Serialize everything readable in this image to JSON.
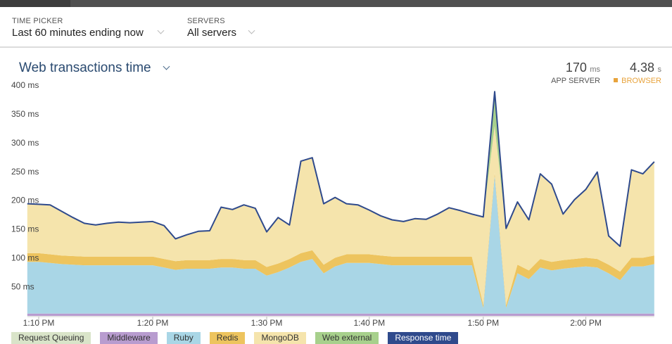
{
  "header": {
    "time_picker": {
      "label": "TIME PICKER",
      "value": "Last 60 minutes ending now"
    },
    "servers": {
      "label": "SERVERS",
      "value": "All servers"
    }
  },
  "summary": {
    "app_server": {
      "value": 170,
      "unit": "ms",
      "label": "APP SERVER"
    },
    "browser": {
      "value": 4.38,
      "unit": "s",
      "label": "BROWSER",
      "color": "#e8a33c"
    }
  },
  "chart_data": {
    "type": "area",
    "stacked": true,
    "title": "Web transactions time",
    "categories": [
      null,
      "1:10 PM",
      null,
      null,
      null,
      null,
      null,
      null,
      null,
      null,
      null,
      "1:20 PM",
      null,
      null,
      null,
      null,
      null,
      null,
      null,
      null,
      null,
      "1:30 PM",
      null,
      null,
      null,
      null,
      null,
      null,
      null,
      null,
      "1:40 PM",
      null,
      null,
      null,
      null,
      null,
      null,
      null,
      null,
      null,
      "1:50 PM",
      null,
      null,
      null,
      null,
      null,
      null,
      null,
      null,
      "2:00 PM",
      null,
      null,
      null,
      null,
      null,
      null
    ],
    "ylim": [
      0,
      400
    ],
    "yticks": [
      {
        "value": 50,
        "label": "50 ms"
      },
      {
        "value": 100,
        "label": "100 ms"
      },
      {
        "value": 150,
        "label": "150 ms"
      },
      {
        "value": 200,
        "label": "200 ms"
      },
      {
        "value": 250,
        "label": "250 ms"
      },
      {
        "value": 300,
        "label": "300 ms"
      },
      {
        "value": 350,
        "label": "350 ms"
      },
      {
        "value": 400,
        "label": "400 ms"
      }
    ],
    "grid": false,
    "series": [
      {
        "name": "Request Queuing",
        "color": "#d9e4c9",
        "values": [
          0,
          0,
          0,
          0,
          0,
          0,
          0,
          0,
          0,
          0,
          0,
          0,
          0,
          0,
          0,
          0,
          0,
          0,
          0,
          0,
          0,
          0,
          0,
          0,
          0,
          0,
          0,
          0,
          0,
          0,
          0,
          0,
          0,
          0,
          0,
          0,
          0,
          0,
          0,
          0,
          0,
          0,
          0,
          0,
          0,
          0,
          0,
          0,
          0,
          0,
          0,
          0,
          0,
          0,
          0,
          0
        ]
      },
      {
        "name": "Middleware",
        "color": "#b89ccf",
        "values": [
          4,
          4,
          4,
          4,
          4,
          4,
          4,
          4,
          4,
          4,
          4,
          4,
          4,
          4,
          4,
          4,
          4,
          4,
          4,
          4,
          4,
          4,
          4,
          4,
          4,
          4,
          4,
          4,
          4,
          4,
          4,
          4,
          4,
          4,
          4,
          4,
          4,
          4,
          4,
          4,
          4,
          4,
          4,
          4,
          4,
          4,
          4,
          4,
          4,
          4,
          4,
          4,
          4,
          4,
          4,
          4
        ]
      },
      {
        "name": "Ruby",
        "color": "#a9d6e6",
        "values": [
          90,
          90,
          88,
          86,
          85,
          84,
          84,
          84,
          84,
          84,
          84,
          84,
          80,
          76,
          78,
          78,
          78,
          80,
          80,
          78,
          78,
          66,
          72,
          80,
          90,
          95,
          70,
          82,
          88,
          88,
          88,
          86,
          84,
          84,
          84,
          84,
          84,
          84,
          84,
          84,
          10,
          240,
          10,
          70,
          60,
          80,
          75,
          78,
          80,
          82,
          80,
          70,
          58,
          82,
          82,
          86
        ]
      },
      {
        "name": "Redis",
        "color": "#edc45e",
        "values": [
          15,
          15,
          15,
          15,
          15,
          15,
          15,
          15,
          15,
          15,
          15,
          15,
          15,
          15,
          15,
          15,
          15,
          15,
          15,
          15,
          15,
          15,
          15,
          15,
          15,
          15,
          15,
          15,
          15,
          15,
          15,
          15,
          15,
          15,
          15,
          15,
          15,
          15,
          15,
          15,
          5,
          5,
          5,
          15,
          15,
          15,
          15,
          15,
          15,
          15,
          15,
          15,
          15,
          15,
          15,
          15
        ]
      },
      {
        "name": "MongoDB",
        "color": "#f5e4ac",
        "values": [
          86,
          85,
          86,
          77,
          67,
          58,
          55,
          58,
          60,
          59,
          60,
          61,
          58,
          39,
          44,
          50,
          51,
          90,
          86,
          96,
          90,
          61,
          80,
          59,
          160,
          161,
          106,
          105,
          88,
          86,
          77,
          69,
          64,
          61,
          66,
          65,
          74,
          85,
          80,
          74,
          153,
          81,
          133,
          109,
          88,
          148,
          135,
          80,
          103,
          119,
          151,
          50,
          44,
          153,
          146,
          163
        ]
      },
      {
        "name": "Web external",
        "color": "#a7d08c",
        "values": [
          0,
          0,
          0,
          0,
          0,
          0,
          0,
          0,
          0,
          0,
          0,
          0,
          0,
          0,
          0,
          0,
          0,
          0,
          0,
          0,
          0,
          0,
          0,
          0,
          0,
          0,
          0,
          0,
          0,
          0,
          0,
          0,
          0,
          0,
          0,
          0,
          0,
          0,
          0,
          0,
          0,
          60,
          0,
          0,
          0,
          0,
          0,
          0,
          0,
          0,
          0,
          0,
          0,
          0,
          0,
          0
        ]
      },
      {
        "name": "Response time",
        "color": "#2f4a8c",
        "type": "line",
        "values": [
          195,
          194,
          193,
          182,
          171,
          161,
          158,
          161,
          163,
          162,
          163,
          164,
          157,
          134,
          141,
          147,
          148,
          189,
          185,
          193,
          187,
          146,
          171,
          158,
          269,
          275,
          195,
          206,
          195,
          193,
          184,
          174,
          167,
          164,
          169,
          168,
          177,
          188,
          183,
          177,
          172,
          390,
          152,
          198,
          167,
          247,
          229,
          177,
          202,
          220,
          250,
          139,
          121,
          254,
          247,
          268
        ]
      }
    ]
  }
}
